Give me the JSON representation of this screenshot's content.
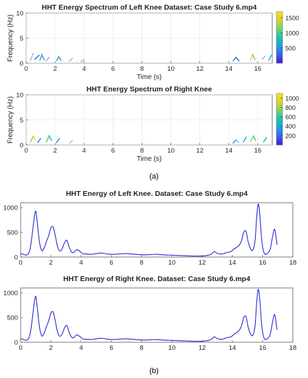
{
  "panel_labels": {
    "a": "(a)",
    "b": "(b)"
  },
  "colorbar_gradient": [
    "#3a1ccf",
    "#3f5ef0",
    "#1ea0e6",
    "#17c2b4",
    "#70d56b",
    "#d9d327",
    "#f6e51e"
  ],
  "line_color": "#2424d6",
  "chart_data": [
    {
      "type": "heatmap",
      "title": "HHT Energy Spectrum of Left Knee Dataset: Case Study 6.mp4",
      "xlabel": "Time (s)",
      "ylabel": "Frequency (Hz)",
      "xlim": [
        0,
        17
      ],
      "ylim": [
        0,
        10
      ],
      "xticks": [
        "0",
        "2",
        "4",
        "6",
        "8",
        "10",
        "12",
        "14",
        "16"
      ],
      "yticks": [
        "0",
        "5",
        "10"
      ],
      "colorbar": {
        "range": [
          0,
          1700
        ],
        "ticks": [
          "500",
          "1000",
          "1500"
        ]
      },
      "grid": true,
      "segments": [
        {
          "t": [
            0.3,
            0.5
          ],
          "f": [
            0.6,
            2.0
          ],
          "e": 180
        },
        {
          "t": [
            0.6,
            0.9
          ],
          "f": [
            0.8,
            1.6
          ],
          "e": 300
        },
        {
          "t": [
            0.95,
            1.1
          ],
          "f": [
            0.6,
            1.8
          ],
          "e": 750
        },
        {
          "t": [
            1.1,
            1.25
          ],
          "f": [
            1.5,
            0.7
          ],
          "e": 600
        },
        {
          "t": [
            1.4,
            1.6
          ],
          "f": [
            0.5,
            1.2
          ],
          "e": 150
        },
        {
          "t": [
            2.1,
            2.25
          ],
          "f": [
            0.5,
            1.3
          ],
          "e": 700
        },
        {
          "t": [
            2.25,
            2.4
          ],
          "f": [
            1.3,
            0.6
          ],
          "e": 500
        },
        {
          "t": [
            3.0,
            3.2
          ],
          "f": [
            0.4,
            1.0
          ],
          "e": 250
        },
        {
          "t": [
            3.8,
            4.0
          ],
          "f": [
            0.3,
            0.7
          ],
          "e": 120
        },
        {
          "t": [
            14.3,
            14.5
          ],
          "f": [
            0.5,
            1.2
          ],
          "e": 450
        },
        {
          "t": [
            14.5,
            14.7
          ],
          "f": [
            1.1,
            0.5
          ],
          "e": 300
        },
        {
          "t": [
            15.5,
            15.65
          ],
          "f": [
            0.6,
            1.8
          ],
          "e": 1500
        },
        {
          "t": [
            15.65,
            15.8
          ],
          "f": [
            1.7,
            0.7
          ],
          "e": 1100
        },
        {
          "t": [
            16.3,
            16.5
          ],
          "f": [
            0.8,
            1.4
          ],
          "e": 250
        },
        {
          "t": [
            16.75,
            16.95
          ],
          "f": [
            0.6,
            1.6
          ],
          "e": 700
        }
      ]
    },
    {
      "type": "heatmap",
      "title": "HHT Energy Spectrum of Right Knee",
      "xlabel": "Time (s)",
      "ylabel": "Frequency (Hz)",
      "xlim": [
        0,
        17
      ],
      "ylim": [
        0,
        10
      ],
      "xticks": [
        "0",
        "2",
        "4",
        "6",
        "8",
        "10",
        "12",
        "14",
        "16"
      ],
      "yticks": [
        "0",
        "5",
        "10"
      ],
      "colorbar": {
        "range": [
          0,
          1100
        ],
        "ticks": [
          "200",
          "400",
          "600",
          "800",
          "1000"
        ]
      },
      "grid": true,
      "segments": [
        {
          "t": [
            0.3,
            0.5
          ],
          "f": [
            0.6,
            1.8
          ],
          "e": 800
        },
        {
          "t": [
            0.5,
            0.65
          ],
          "f": [
            1.8,
            0.9
          ],
          "e": 1000
        },
        {
          "t": [
            0.8,
            1.0
          ],
          "f": [
            0.5,
            1.3
          ],
          "e": 300
        },
        {
          "t": [
            1.4,
            1.6
          ],
          "f": [
            0.6,
            1.9
          ],
          "e": 700
        },
        {
          "t": [
            1.6,
            1.75
          ],
          "f": [
            1.8,
            0.9
          ],
          "e": 500
        },
        {
          "t": [
            2.1,
            2.3
          ],
          "f": [
            0.5,
            1.3
          ],
          "e": 350
        },
        {
          "t": [
            3.0,
            3.2
          ],
          "f": [
            0.4,
            0.9
          ],
          "e": 200
        },
        {
          "t": [
            14.3,
            14.5
          ],
          "f": [
            0.4,
            1.0
          ],
          "e": 350
        },
        {
          "t": [
            14.5,
            14.7
          ],
          "f": [
            1.0,
            0.5
          ],
          "e": 250
        },
        {
          "t": [
            15.0,
            15.2
          ],
          "f": [
            0.6,
            1.6
          ],
          "e": 500
        },
        {
          "t": [
            15.5,
            15.7
          ],
          "f": [
            0.7,
            1.8
          ],
          "e": 800
        },
        {
          "t": [
            15.7,
            15.85
          ],
          "f": [
            1.8,
            0.9
          ],
          "e": 600
        },
        {
          "t": [
            16.4,
            16.6
          ],
          "f": [
            0.6,
            1.5
          ],
          "e": 450
        }
      ]
    },
    {
      "type": "line",
      "title": "HHT Energy of Left Knee. Dataset: Case Study 6.mp4",
      "xlim": [
        0,
        18
      ],
      "ylim": [
        0,
        1100
      ],
      "xticks": [
        "0",
        "2",
        "4",
        "6",
        "8",
        "10",
        "12",
        "14",
        "16",
        "18"
      ],
      "yticks": [
        "0",
        "500",
        "1000"
      ],
      "grid": false,
      "x": [
        0,
        0.2,
        0.4,
        0.6,
        0.75,
        0.9,
        1.0,
        1.1,
        1.25,
        1.4,
        1.55,
        1.7,
        1.85,
        2.0,
        2.15,
        2.3,
        2.45,
        2.6,
        2.75,
        2.9,
        3.05,
        3.2,
        3.35,
        3.5,
        3.7,
        3.9,
        4.1,
        4.4,
        4.7,
        5.0,
        5.4,
        5.8,
        6.2,
        6.6,
        7.0,
        7.4,
        7.8,
        8.2,
        8.6,
        9.0,
        9.4,
        9.8,
        10.2,
        10.6,
        11.0,
        11.4,
        11.8,
        12.2,
        12.6,
        12.8,
        13.0,
        13.3,
        13.6,
        13.9,
        14.1,
        14.3,
        14.45,
        14.6,
        14.75,
        14.9,
        15.05,
        15.2,
        15.35,
        15.5,
        15.6,
        15.7,
        15.8,
        15.95,
        16.1,
        16.3,
        16.5,
        16.65,
        16.8,
        16.95
      ],
      "values": [
        70,
        55,
        40,
        130,
        420,
        800,
        930,
        700,
        300,
        130,
        180,
        310,
        430,
        590,
        610,
        420,
        200,
        120,
        170,
        290,
        340,
        210,
        110,
        90,
        150,
        120,
        70,
        60,
        55,
        70,
        80,
        60,
        55,
        65,
        70,
        60,
        50,
        45,
        50,
        55,
        45,
        40,
        35,
        30,
        25,
        20,
        20,
        25,
        55,
        110,
        75,
        60,
        90,
        110,
        160,
        200,
        240,
        330,
        500,
        520,
        300,
        170,
        140,
        330,
        780,
        1070,
        900,
        320,
        80,
        70,
        160,
        400,
        560,
        250
      ]
    },
    {
      "type": "line",
      "title": "HHT Energy of Right Knee. Dataset: Case Study 6.mp4",
      "xlim": [
        0,
        18
      ],
      "ylim": [
        0,
        1100
      ],
      "xticks": [
        "0",
        "2",
        "4",
        "6",
        "8",
        "10",
        "12",
        "14",
        "16",
        "18"
      ],
      "yticks": [
        "0",
        "500",
        "1000"
      ],
      "grid": false,
      "x": [
        0,
        0.2,
        0.4,
        0.6,
        0.75,
        0.9,
        1.0,
        1.1,
        1.25,
        1.4,
        1.55,
        1.7,
        1.85,
        2.0,
        2.15,
        2.3,
        2.45,
        2.6,
        2.75,
        2.9,
        3.05,
        3.2,
        3.35,
        3.5,
        3.7,
        3.9,
        4.1,
        4.4,
        4.7,
        5.0,
        5.4,
        5.8,
        6.2,
        6.6,
        7.0,
        7.4,
        7.8,
        8.2,
        8.6,
        9.0,
        9.4,
        9.8,
        10.2,
        10.6,
        11.0,
        11.4,
        11.8,
        12.2,
        12.6,
        12.8,
        13.0,
        13.3,
        13.6,
        13.9,
        14.1,
        14.3,
        14.45,
        14.6,
        14.75,
        14.9,
        15.05,
        15.2,
        15.35,
        15.5,
        15.6,
        15.7,
        15.8,
        15.95,
        16.1,
        16.3,
        16.5,
        16.65,
        16.8,
        16.95
      ],
      "values": [
        70,
        55,
        40,
        130,
        420,
        800,
        930,
        700,
        300,
        130,
        180,
        310,
        430,
        590,
        610,
        420,
        200,
        120,
        170,
        290,
        340,
        210,
        110,
        90,
        150,
        120,
        70,
        60,
        55,
        70,
        80,
        60,
        55,
        65,
        70,
        60,
        50,
        45,
        50,
        55,
        45,
        40,
        35,
        30,
        25,
        20,
        20,
        25,
        55,
        110,
        75,
        60,
        90,
        110,
        160,
        200,
        240,
        330,
        500,
        520,
        300,
        170,
        140,
        330,
        780,
        1070,
        900,
        320,
        80,
        70,
        160,
        400,
        560,
        250
      ]
    }
  ]
}
